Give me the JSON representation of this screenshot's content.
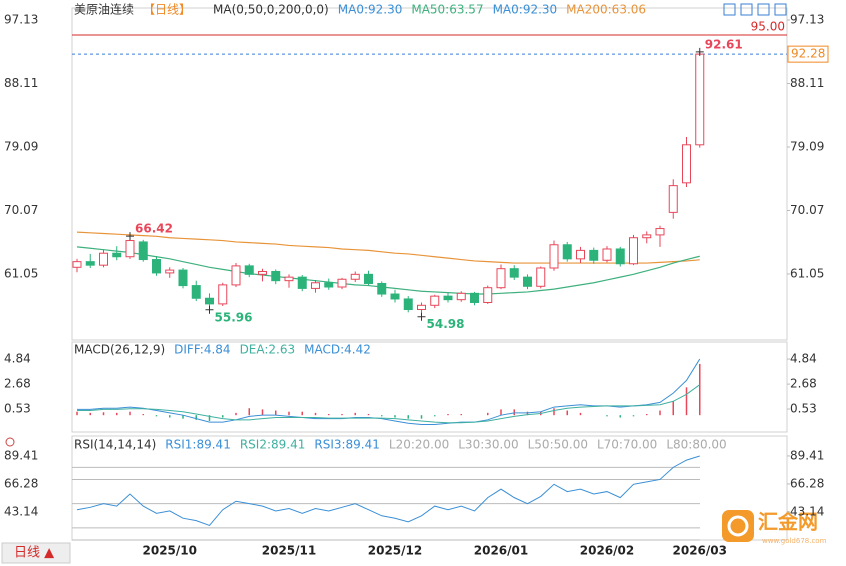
{
  "chart_data": [
    {
      "type": "candlestick",
      "header": [
        {
          "text": "美原油连续",
          "color": "#333333"
        },
        {
          "text": "【日线】",
          "color": "#f08a24"
        },
        {
          "text": "MA(0,50,0,200,0,0)",
          "color": "#333333"
        },
        {
          "text": "MA0:92.30",
          "color": "#3a8fd6"
        },
        {
          "text": "MA50:63.57",
          "color": "#3fb07e"
        },
        {
          "text": "MA0:92.30",
          "color": "#3a8fd6"
        },
        {
          "text": "MA200:63.06",
          "color": "#e8943a"
        }
      ],
      "categories": [
        null,
        null,
        null,
        null,
        null,
        null,
        null,
        "2025/10",
        null,
        null,
        null,
        null,
        null,
        null,
        null,
        null,
        "2025/11",
        null,
        null,
        null,
        null,
        null,
        null,
        null,
        "2025/12",
        null,
        null,
        null,
        null,
        null,
        null,
        null,
        "2026/01",
        null,
        null,
        null,
        null,
        null,
        null,
        null,
        "2026/02",
        null,
        null,
        null,
        null,
        null,
        null,
        "2026/03"
      ],
      "open": [
        62.0,
        62.8,
        62.3,
        64.0,
        63.5,
        65.6,
        63.1,
        61.2,
        61.6,
        59.4,
        57.6,
        56.8,
        59.5,
        62.2,
        61.0,
        61.4,
        60.1,
        60.6,
        59.0,
        59.8,
        59.2,
        60.3,
        61.0,
        59.7,
        58.2,
        57.5,
        56.0,
        56.6,
        57.9,
        57.4,
        58.3,
        57.0,
        59.1,
        61.8,
        60.6,
        59.3,
        61.9,
        65.2,
        63.2,
        64.4,
        63.0,
        64.6,
        62.5,
        66.2,
        66.6,
        69.8,
        74.0,
        79.4
      ],
      "high": [
        63.2,
        63.9,
        64.5,
        65.0,
        66.42,
        65.9,
        63.6,
        62.0,
        61.9,
        60.1,
        58.3,
        59.8,
        62.6,
        62.5,
        61.8,
        61.7,
        61.0,
        60.9,
        60.2,
        60.4,
        60.5,
        61.4,
        61.5,
        60.0,
        58.8,
        57.9,
        57.0,
        58.1,
        58.4,
        58.6,
        58.5,
        59.4,
        62.4,
        62.3,
        61.0,
        62.1,
        65.8,
        65.6,
        64.9,
        64.8,
        65.0,
        64.9,
        66.6,
        67.1,
        67.9,
        74.5,
        80.5,
        92.61
      ],
      "low": [
        61.3,
        61.9,
        62.0,
        63.0,
        63.2,
        62.8,
        60.8,
        60.5,
        59.0,
        57.2,
        55.96,
        56.5,
        59.2,
        60.6,
        60.0,
        59.6,
        59.1,
        58.6,
        58.4,
        58.8,
        58.9,
        59.9,
        59.4,
        57.8,
        57.0,
        55.6,
        54.98,
        56.2,
        57.0,
        57.1,
        56.6,
        56.8,
        58.9,
        60.2,
        58.9,
        59.0,
        61.5,
        62.8,
        62.6,
        62.5,
        62.7,
        62.1,
        62.3,
        65.4,
        64.9,
        68.9,
        73.4,
        79.0
      ],
      "close": [
        62.8,
        62.3,
        64.0,
        63.5,
        65.8,
        63.1,
        61.2,
        61.6,
        59.4,
        57.6,
        56.8,
        59.5,
        62.2,
        61.0,
        61.4,
        60.1,
        60.6,
        59.0,
        59.8,
        59.2,
        60.3,
        61.0,
        59.7,
        58.2,
        57.5,
        56.0,
        56.6,
        57.9,
        57.4,
        58.3,
        57.0,
        59.1,
        61.8,
        60.6,
        59.3,
        61.9,
        65.2,
        63.2,
        64.4,
        63.0,
        64.6,
        62.5,
        66.2,
        66.6,
        67.5,
        73.6,
        79.4,
        92.28
      ],
      "up_color": "#e8475a",
      "down_color": "#2bb37a",
      "series": [
        {
          "color": "#e8943a",
          "values": [
            67.0,
            66.9,
            66.8,
            66.7,
            66.6,
            66.5,
            66.4,
            66.2,
            66.1,
            66.0,
            65.9,
            65.8,
            65.6,
            65.5,
            65.4,
            65.3,
            65.1,
            65.0,
            64.9,
            64.8,
            64.6,
            64.5,
            64.4,
            64.2,
            64.0,
            63.9,
            63.7,
            63.5,
            63.3,
            63.1,
            62.9,
            62.8,
            62.7,
            62.6,
            62.6,
            62.6,
            62.6,
            62.6,
            62.6,
            62.6,
            62.6,
            62.6,
            62.6,
            62.6,
            62.7,
            62.8,
            62.9,
            63.06
          ]
        },
        {
          "color": "#3fb07e",
          "values": [
            64.9,
            64.7,
            64.5,
            64.3,
            64.1,
            63.8,
            63.5,
            63.2,
            62.8,
            62.4,
            62.0,
            61.7,
            61.4,
            61.1,
            60.9,
            60.7,
            60.5,
            60.3,
            60.1,
            59.9,
            59.7,
            59.5,
            59.4,
            59.2,
            59.0,
            58.8,
            58.6,
            58.5,
            58.4,
            58.3,
            58.2,
            58.2,
            58.3,
            58.4,
            58.5,
            58.7,
            58.9,
            59.2,
            59.5,
            59.8,
            60.2,
            60.6,
            61.0,
            61.5,
            62.0,
            62.6,
            63.1,
            63.57
          ]
        }
      ],
      "ylim": [
        51.67,
        97.13
      ],
      "yticks": [
        97.13,
        88.11,
        79.09,
        70.07,
        61.05
      ],
      "hline": {
        "value": 95.0,
        "label": "95.00",
        "color": "#d42a2a"
      },
      "last_price": {
        "value": 92.28,
        "label": "92.28",
        "color": "#f08a24",
        "line_color": "#3a7fd6"
      },
      "annotations": [
        {
          "index": 47,
          "value": 92.61,
          "kind": "high"
        },
        {
          "index": 4,
          "value": 66.42,
          "kind": "high"
        },
        {
          "index": 10,
          "value": 55.96,
          "kind": "low"
        },
        {
          "index": 26,
          "value": 54.98,
          "kind": "low"
        }
      ]
    },
    {
      "type": "macd",
      "header": [
        {
          "text": "MACD(26,12,9)",
          "color": "#333333"
        },
        {
          "text": "DIFF:4.84",
          "color": "#3a8fd6"
        },
        {
          "text": "DEA:2.63",
          "color": "#3fb0a0"
        },
        {
          "text": "MACD:4.42",
          "color": "#3a8fd6"
        }
      ],
      "histogram": [
        0.3,
        0.2,
        0.25,
        0.2,
        0.3,
        0.1,
        -0.1,
        -0.2,
        -0.3,
        -0.4,
        -0.5,
        -0.2,
        0.2,
        0.6,
        0.5,
        0.4,
        0.3,
        0.3,
        0.2,
        0.1,
        0.1,
        0.2,
        0.1,
        -0.1,
        -0.2,
        -0.3,
        -0.3,
        -0.1,
        0.1,
        0.1,
        0.0,
        0.2,
        0.5,
        0.5,
        0.3,
        0.3,
        0.6,
        0.4,
        0.2,
        0.0,
        -0.1,
        -0.2,
        -0.1,
        0.1,
        0.4,
        1.2,
        2.4,
        4.42
      ],
      "up_color": "#e8475a",
      "down_color": "#2bb37a",
      "series": [
        {
          "color": "#3a8fd6",
          "values": [
            0.5,
            0.5,
            0.6,
            0.6,
            0.7,
            0.6,
            0.4,
            0.2,
            0.0,
            -0.3,
            -0.6,
            -0.6,
            -0.4,
            -0.1,
            0.0,
            0.0,
            -0.1,
            -0.2,
            -0.3,
            -0.3,
            -0.3,
            -0.2,
            -0.2,
            -0.3,
            -0.5,
            -0.7,
            -0.8,
            -0.8,
            -0.7,
            -0.6,
            -0.6,
            -0.4,
            0.0,
            0.2,
            0.2,
            0.3,
            0.7,
            0.8,
            0.9,
            0.8,
            0.8,
            0.7,
            0.8,
            0.9,
            1.1,
            1.9,
            3.0,
            4.84
          ]
        },
        {
          "color": "#3fb0a0",
          "values": [
            0.4,
            0.4,
            0.5,
            0.5,
            0.55,
            0.55,
            0.5,
            0.4,
            0.3,
            0.1,
            -0.1,
            -0.3,
            -0.4,
            -0.4,
            -0.3,
            -0.2,
            -0.2,
            -0.2,
            -0.2,
            -0.25,
            -0.25,
            -0.25,
            -0.25,
            -0.25,
            -0.3,
            -0.4,
            -0.5,
            -0.6,
            -0.65,
            -0.65,
            -0.6,
            -0.5,
            -0.3,
            -0.1,
            0.05,
            0.15,
            0.4,
            0.6,
            0.7,
            0.75,
            0.8,
            0.8,
            0.8,
            0.85,
            0.9,
            1.2,
            1.8,
            2.63
          ]
        }
      ],
      "ylim": [
        -1.45,
        6.31
      ],
      "yticks": [
        4.84,
        2.68,
        0.53
      ]
    },
    {
      "type": "line",
      "header": [
        {
          "text": "RSI(14,14,14)",
          "color": "#333333"
        },
        {
          "text": "RSI1:89.41",
          "color": "#3a8fd6"
        },
        {
          "text": "RSI2:89.41",
          "color": "#3fb0a0"
        },
        {
          "text": "RSI3:89.41",
          "color": "#3a8fd6"
        },
        {
          "text": "L20:20.00",
          "color": "#aaaaaa"
        },
        {
          "text": "L30:30.00",
          "color": "#aaaaaa"
        },
        {
          "text": "L50:50.00",
          "color": "#aaaaaa"
        },
        {
          "text": "L70:70.00",
          "color": "#aaaaaa"
        },
        {
          "text": "L80:80.00",
          "color": "#aaaaaa"
        }
      ],
      "levels": [
        80,
        70,
        50,
        30,
        20
      ],
      "series": [
        {
          "color": "#3a8fd6",
          "values": [
            45,
            47,
            50,
            48,
            58,
            48,
            42,
            44,
            38,
            36,
            32,
            45,
            52,
            50,
            48,
            44,
            46,
            42,
            46,
            44,
            47,
            50,
            45,
            40,
            38,
            35,
            40,
            48,
            45,
            48,
            44,
            55,
            62,
            55,
            50,
            56,
            66,
            60,
            62,
            58,
            60,
            55,
            66,
            68,
            70,
            80,
            86,
            89.41
          ]
        }
      ],
      "ylim": [
        20,
        105.9
      ],
      "yticks": [
        89.41,
        66.28,
        43.14
      ]
    }
  ],
  "ui": {
    "period_button": "日线 ▲",
    "watermark": "汇金网",
    "watermark_url": "www.gold678.com"
  }
}
